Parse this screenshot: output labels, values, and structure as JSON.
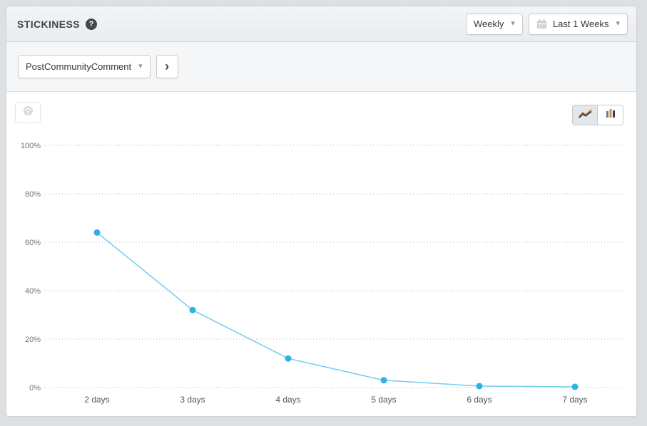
{
  "header": {
    "title": "STICKINESS",
    "granularity_dropdown": {
      "value": "Weekly"
    },
    "date_range_dropdown": {
      "value": "Last 1 Weeks"
    }
  },
  "toolbar": {
    "event_dropdown": {
      "value": "PostCommunityComment"
    }
  },
  "icons": {
    "help": "?",
    "caret_down": "▾",
    "chevron_right": "›"
  },
  "chart_controls": {
    "view_toggle": [
      {
        "name": "line-chart-view",
        "selected": true
      },
      {
        "name": "bar-chart-view",
        "selected": false
      }
    ]
  },
  "chart_data": {
    "type": "line",
    "x": [
      "2 days",
      "3 days",
      "4 days",
      "5 days",
      "6 days",
      "7 days"
    ],
    "values": [
      64,
      32,
      12,
      3,
      0.6,
      0.3
    ],
    "yticks": [
      "0%",
      "20%",
      "40%",
      "60%",
      "80%",
      "100%"
    ],
    "ylim": [
      0,
      100
    ],
    "grid": "dotted-horizontal",
    "legend": "none",
    "line_color": "#74cdf2",
    "point_color": "#2fb1e7",
    "grid_color": "#b4b7ba"
  }
}
